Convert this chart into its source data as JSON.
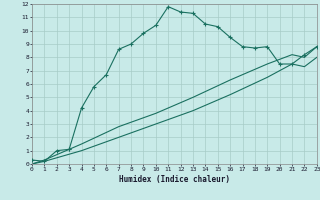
{
  "xlabel": "Humidex (Indice chaleur)",
  "bg_color": "#c8eae8",
  "line_color": "#1a7060",
  "grid_color": "#a8ccc8",
  "xlim": [
    0,
    23
  ],
  "ylim": [
    0,
    12
  ],
  "xticks": [
    0,
    1,
    2,
    3,
    4,
    5,
    6,
    7,
    8,
    9,
    10,
    11,
    12,
    13,
    14,
    15,
    16,
    17,
    18,
    19,
    20,
    21,
    22,
    23
  ],
  "yticks": [
    0,
    1,
    2,
    3,
    4,
    5,
    6,
    7,
    8,
    9,
    10,
    11,
    12
  ],
  "series1_x": [
    0,
    1,
    2,
    3,
    3,
    4,
    5,
    6,
    7,
    8,
    9,
    10,
    11,
    12,
    13,
    14,
    15,
    16,
    17,
    18,
    19,
    20,
    21,
    22,
    23
  ],
  "series1_y": [
    0.3,
    0.2,
    1.0,
    1.1,
    1.1,
    4.2,
    5.8,
    6.7,
    8.6,
    9.0,
    9.8,
    10.4,
    11.8,
    11.4,
    11.3,
    10.5,
    10.3,
    9.5,
    8.8,
    8.7,
    8.8,
    7.5,
    7.5,
    8.2,
    8.8
  ],
  "series2_x": [
    0,
    1,
    4,
    7,
    10,
    13,
    16,
    19,
    21,
    22,
    23
  ],
  "series2_y": [
    0,
    0.3,
    1.5,
    2.8,
    3.8,
    5.0,
    6.3,
    7.5,
    8.2,
    8.0,
    8.8
  ],
  "series3_x": [
    0,
    1,
    4,
    7,
    10,
    13,
    16,
    19,
    21,
    22,
    23
  ],
  "series3_y": [
    0,
    0.2,
    1.0,
    2.0,
    3.0,
    4.0,
    5.2,
    6.5,
    7.5,
    7.3,
    8.0
  ]
}
